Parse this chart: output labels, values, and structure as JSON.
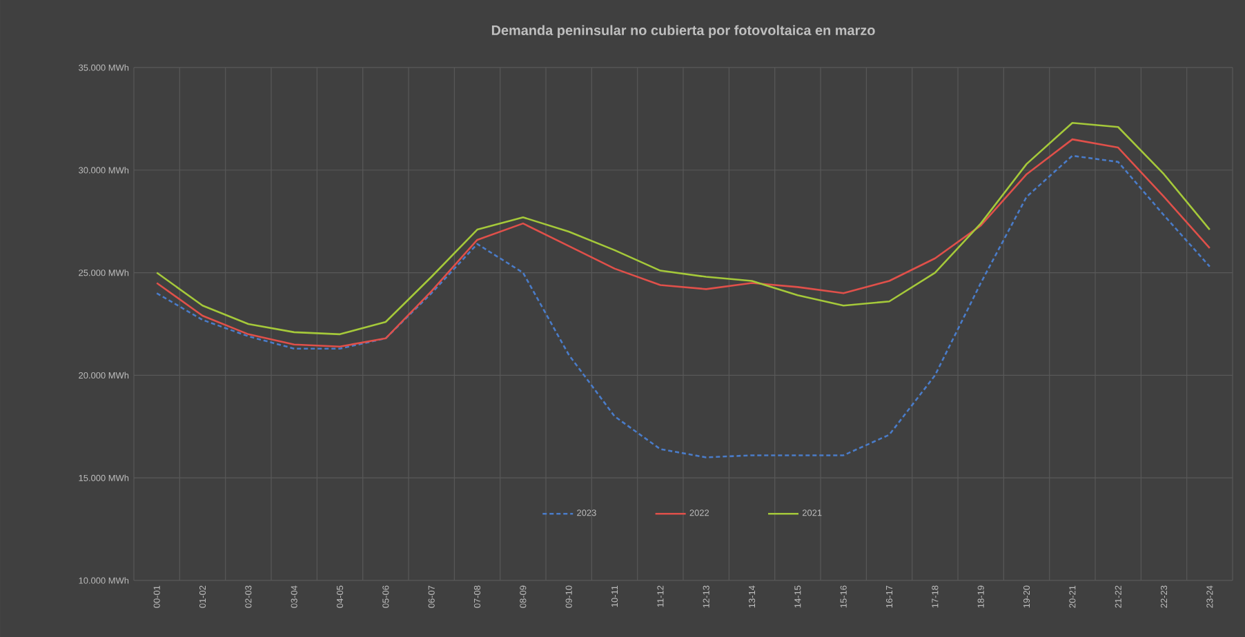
{
  "chart_data": {
    "type": "line",
    "title": "Demanda peninsular no cubierta por fotovoltaica en marzo",
    "categories": [
      "00-01",
      "01-02",
      "02-03",
      "03-04",
      "04-05",
      "05-06",
      "06-07",
      "07-08",
      "08-09",
      "09-10",
      "10-11",
      "11-12",
      "12-13",
      "13-14",
      "14-15",
      "15-16",
      "16-17",
      "17-18",
      "18-19",
      "19-20",
      "20-21",
      "21-22",
      "22-23",
      "23-24"
    ],
    "series": [
      {
        "name": "2023",
        "color": "#4a7cc9",
        "line_style": "dashed",
        "values": [
          24000,
          22700,
          21900,
          21300,
          21300,
          21800,
          24000,
          26400,
          25000,
          21000,
          18000,
          16400,
          16000,
          16100,
          16100,
          16100,
          17100,
          20000,
          24500,
          28700,
          30700,
          30400,
          27800,
          25300
        ]
      },
      {
        "name": "2022",
        "color": "#e0504a",
        "line_style": "solid",
        "values": [
          24500,
          22900,
          22000,
          21500,
          21400,
          21800,
          24100,
          26600,
          27400,
          26300,
          25200,
          24400,
          24200,
          24500,
          24300,
          24000,
          24600,
          25700,
          27300,
          29800,
          31500,
          31100,
          28700,
          26200
        ]
      },
      {
        "name": "2021",
        "color": "#a5c93a",
        "line_style": "solid",
        "values": [
          25000,
          23400,
          22500,
          22100,
          22000,
          22600,
          24800,
          27100,
          27700,
          27000,
          26100,
          25100,
          24800,
          24600,
          23900,
          23400,
          23600,
          25000,
          27400,
          30300,
          32300,
          32100,
          29800,
          27100
        ]
      }
    ],
    "ylim": [
      10000,
      35000
    ],
    "yticks": [
      {
        "value": 10000,
        "label": "10.000 MWh"
      },
      {
        "value": 15000,
        "label": "15.000 MWh"
      },
      {
        "value": 20000,
        "label": "20.000 MWh"
      },
      {
        "value": 25000,
        "label": "25.000 MWh"
      },
      {
        "value": 30000,
        "label": "30.000 MWh"
      },
      {
        "value": 35000,
        "label": "35.000 MWh"
      }
    ],
    "grid": true,
    "legend": "bottom"
  }
}
